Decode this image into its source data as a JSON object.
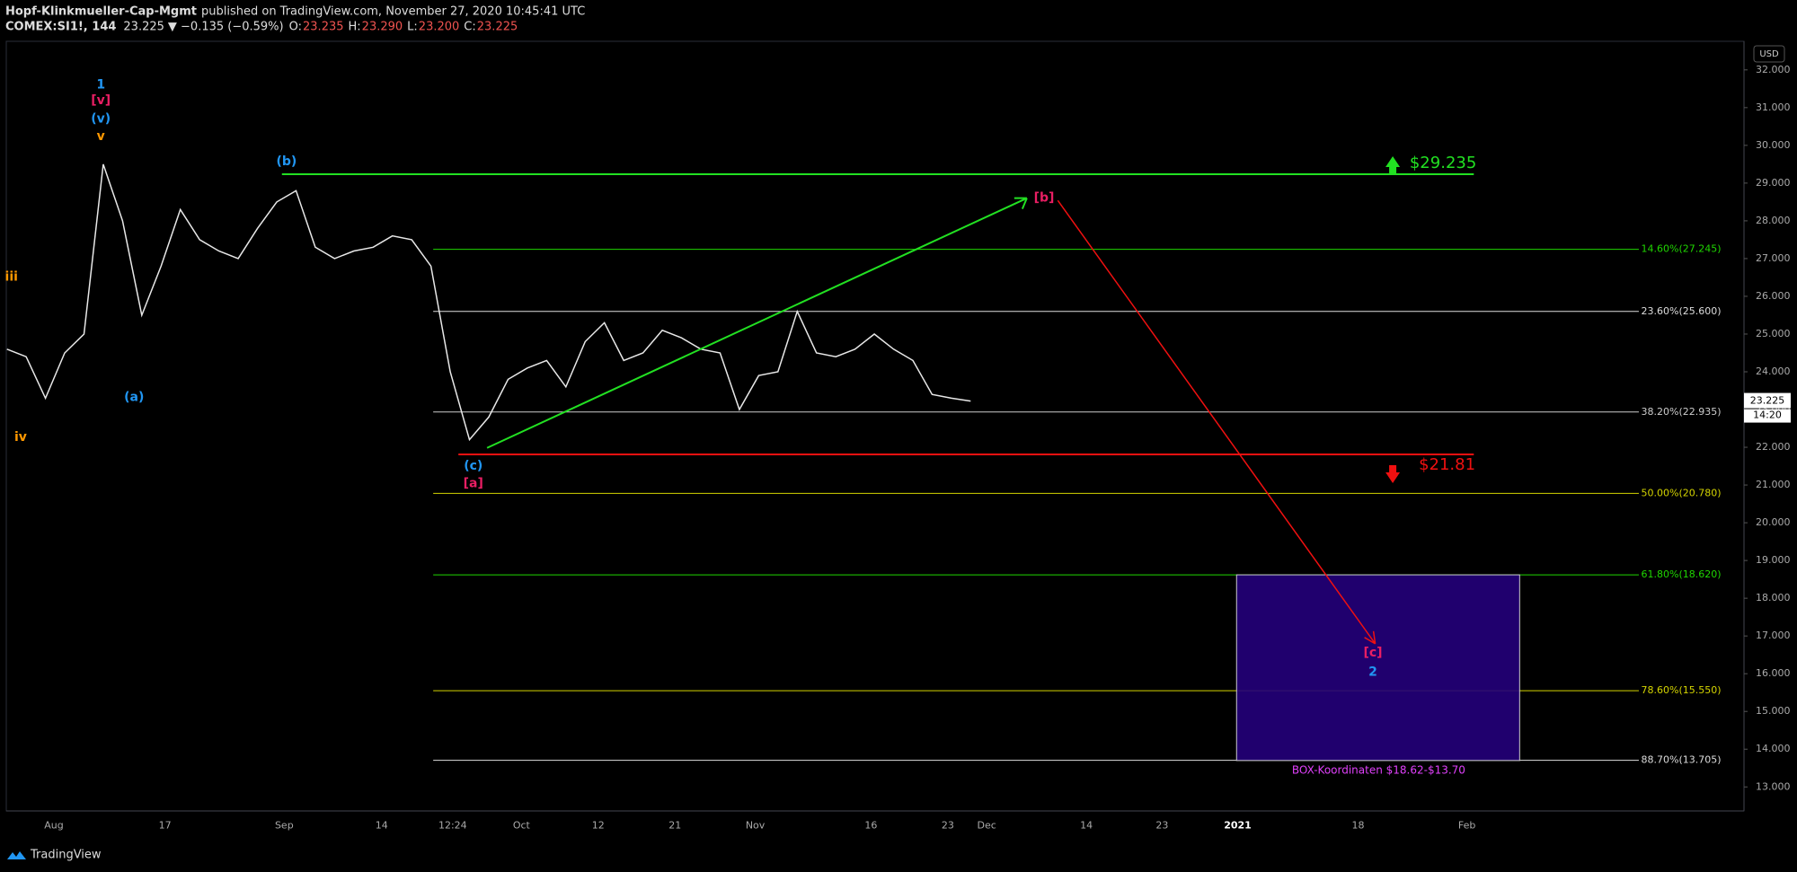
{
  "header": {
    "author": "Hopf-Klinkmueller-Cap-Mgmt",
    "published": "published on TradingView.com, November 27, 2020 10:45:41 UTC",
    "symbol": "COMEX:SI1!, 144",
    "last": "23.225",
    "change": "▼ −0.135 (−0.59%)",
    "open_label": "O:",
    "open": "23.235",
    "high_label": "H:",
    "high": "23.290",
    "low_label": "L:",
    "low": "23.200",
    "close_label": "C:",
    "close": "23.225"
  },
  "currency_button": "USD",
  "price_ticks": [
    {
      "value": 32,
      "label": "32.000"
    },
    {
      "value": 31,
      "label": "31.000"
    },
    {
      "value": 30,
      "label": "30.000"
    },
    {
      "value": 29,
      "label": "29.000"
    },
    {
      "value": 28,
      "label": "28.000"
    },
    {
      "value": 27,
      "label": "27.000"
    },
    {
      "value": 26,
      "label": "26.000"
    },
    {
      "value": 25,
      "label": "25.000"
    },
    {
      "value": 24,
      "label": "24.000"
    },
    {
      "value": 23,
      "label": "23.000"
    },
    {
      "value": 22,
      "label": "22.000"
    },
    {
      "value": 21,
      "label": "21.000"
    },
    {
      "value": 20,
      "label": "20.000"
    },
    {
      "value": 19,
      "label": "19.000"
    },
    {
      "value": 18,
      "label": "18.000"
    },
    {
      "value": 17,
      "label": "17.000"
    },
    {
      "value": 16,
      "label": "16.000"
    },
    {
      "value": 15,
      "label": "15.000"
    },
    {
      "value": 14,
      "label": "14.000"
    },
    {
      "value": 13,
      "label": "13.000"
    }
  ],
  "time_labels": [
    "Aug",
    "17",
    "Sep",
    "14",
    "12:24",
    "Oct",
    "12",
    "21",
    "Nov",
    "16",
    "23",
    "Dec",
    "14",
    "23",
    "2021",
    "18",
    "Feb"
  ],
  "price_trace": [
    24.6,
    24.4,
    23.3,
    24.5,
    25.0,
    29.5,
    28.0,
    25.5,
    26.8,
    28.3,
    27.5,
    27.2,
    27.0,
    27.8,
    28.5,
    28.8,
    27.3,
    27.0,
    27.2,
    27.3,
    27.6,
    27.5,
    26.8,
    24.0,
    22.2,
    22.8,
    23.8,
    24.1,
    24.3,
    23.6,
    24.8,
    25.3,
    24.3,
    24.5,
    25.1,
    24.9,
    24.6,
    24.5,
    23.0,
    23.9,
    24.0,
    25.6,
    24.5,
    24.4,
    24.6,
    25.0,
    24.6,
    24.3,
    23.4,
    23.3,
    23.225
  ],
  "last_price": {
    "label": "23.225",
    "value": 23.225,
    "countdown": "14:20"
  },
  "fib_levels": [
    {
      "label": "14.60%(27.245)",
      "value": 27.245
    },
    {
      "label": "23.60%(25.600)",
      "value": 25.6
    },
    {
      "label": "38.20%(22.935)",
      "value": 22.935
    },
    {
      "label": "50.00%(20.780)",
      "value": 20.78
    },
    {
      "label": "61.80%(18.620)",
      "value": 18.62
    },
    {
      "label": "78.60%(15.550)",
      "value": 15.55
    },
    {
      "label": "88.70%(13.705)",
      "value": 13.705
    }
  ],
  "target_up": {
    "label": "$29.235",
    "value": 29.235
  },
  "target_down": {
    "label": "$21.81",
    "value": 21.81
  },
  "box": {
    "label": "BOX-Koordinaten $18.62-$13.70",
    "top": 18.62,
    "bottom": 13.7
  },
  "wave_labels": [
    "1",
    "[v]",
    "(v)",
    "v",
    "iii",
    "iv",
    "(a)",
    "(b)",
    "(c)",
    "[a]",
    "[b]",
    "[c]",
    "2"
  ],
  "footer": "TradingView"
}
